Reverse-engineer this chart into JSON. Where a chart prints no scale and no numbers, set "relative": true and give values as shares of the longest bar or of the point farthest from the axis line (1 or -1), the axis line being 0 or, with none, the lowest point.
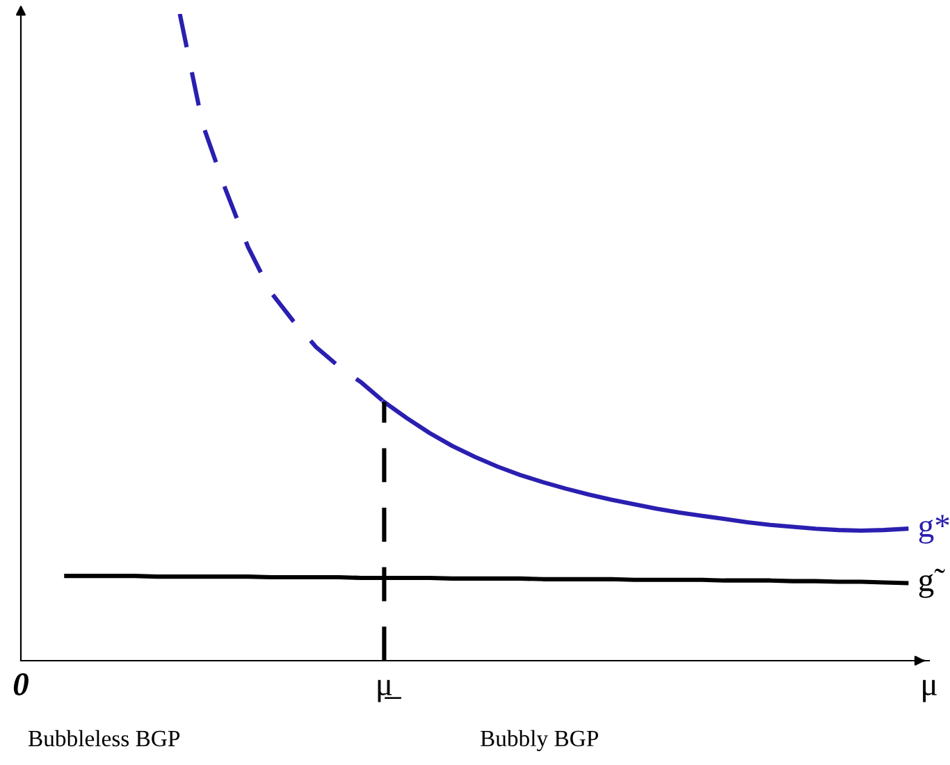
{
  "chart_data": {
    "type": "line",
    "relative": true,
    "categories": [
      "0",
      null,
      null,
      null,
      null,
      null,
      null,
      null,
      null,
      null,
      null,
      null,
      null,
      null,
      null,
      null,
      "μ̲",
      null,
      null,
      null,
      null,
      null,
      null,
      null,
      null,
      null,
      null,
      null,
      null,
      null,
      null,
      null,
      null,
      null,
      null,
      null,
      null,
      null,
      null,
      null,
      "μ"
    ],
    "series": [
      {
        "color": "#2a1fb0",
        "line_style": "dashed",
        "values": [
          null,
          null,
          null,
          null,
          null,
          null,
          null,
          1.0,
          0.83,
          0.73,
          0.64,
          0.57,
          0.525,
          0.485,
          0.455,
          0.43,
          0.4,
          null,
          null,
          null,
          null,
          null,
          null,
          null,
          null,
          null,
          null,
          null,
          null,
          null,
          null,
          null,
          null,
          null,
          null,
          null,
          null,
          null,
          null,
          null,
          null
        ]
      },
      {
        "name": "g*",
        "color": "#2a1fb0",
        "line_style": "solid",
        "values": [
          null,
          null,
          null,
          null,
          null,
          null,
          null,
          null,
          null,
          null,
          null,
          null,
          null,
          null,
          null,
          null,
          0.4,
          0.375,
          0.352,
          0.332,
          0.315,
          0.3,
          0.287,
          0.276,
          0.266,
          0.257,
          0.249,
          0.242,
          0.235,
          0.229,
          0.224,
          0.219,
          0.214,
          0.21,
          0.207,
          0.204,
          0.202,
          0.201,
          0.202,
          0.204,
          null
        ]
      },
      {
        "name": "g̃",
        "color": "#000000",
        "line_style": "solid",
        "values": [
          null,
          null,
          0.131,
          0.131,
          0.131,
          0.131,
          0.13,
          0.13,
          0.13,
          0.13,
          0.13,
          0.129,
          0.129,
          0.129,
          0.129,
          0.128,
          0.128,
          0.128,
          0.128,
          0.127,
          0.127,
          0.127,
          0.127,
          0.126,
          0.126,
          0.126,
          0.126,
          0.125,
          0.125,
          0.125,
          0.125,
          0.124,
          0.124,
          0.124,
          0.123,
          0.123,
          0.122,
          0.122,
          0.121,
          0.12,
          null
        ]
      },
      {
        "color": "#000000",
        "line_style": "dashed",
        "x": [
          "μ̲",
          "μ̲"
        ],
        "values": [
          0,
          0.4
        ]
      }
    ],
    "annotations": [
      "Bubbleless BGP",
      "Bubbly BGP"
    ]
  }
}
